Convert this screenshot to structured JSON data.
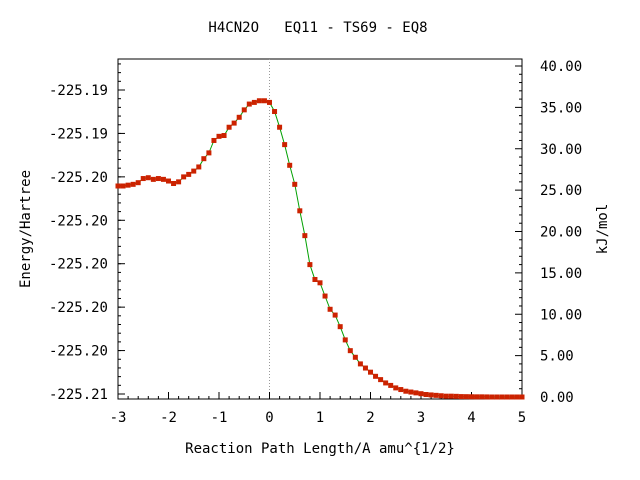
{
  "chart_data": {
    "type": "line",
    "title": "H4CN2O   EQ11 - TS69 - EQ8",
    "xlabel": "Reaction Path Length/A amu^{1/2}",
    "ylabel_left": "Energy/Hartree",
    "ylabel_right": "kJ/mol",
    "xlim": [
      -3,
      5
    ],
    "x_ticks": [
      "-3",
      "-2",
      "-1",
      "0",
      "1",
      "2",
      "3",
      "4",
      "5"
    ],
    "left_tick_labels": [
      "-225.19",
      "-225.19",
      "-225.20",
      "-225.20",
      "-225.20",
      "-225.20",
      "-225.20",
      "-225.21"
    ],
    "right_ylim": [
      0,
      40
    ],
    "right_tick_values": [
      0,
      5,
      10,
      15,
      20,
      25,
      30,
      35,
      40
    ],
    "right_tick_labels": [
      "0.00",
      "5.00",
      "10.00",
      "15.00",
      "20.00",
      "25.00",
      "30.00",
      "35.00",
      "40.00"
    ],
    "ts_x": 0,
    "line_color": "#00a000",
    "marker_color": "#cc2200",
    "series": [
      {
        "x": [
          -3.0,
          -2.9,
          -2.8,
          -2.7,
          -2.6,
          -2.5,
          -2.4,
          -2.3,
          -2.2,
          -2.1,
          -2.0,
          -1.9,
          -1.8,
          -1.7,
          -1.6,
          -1.5,
          -1.4,
          -1.3,
          -1.2,
          -1.1,
          -1.0,
          -0.9,
          -0.8,
          -0.7,
          -0.6,
          -0.5,
          -0.4,
          -0.3,
          -0.2,
          -0.1,
          0.0,
          0.1,
          0.2,
          0.3,
          0.4,
          0.5,
          0.6,
          0.7,
          0.8,
          0.9,
          1.0,
          1.1,
          1.2,
          1.3,
          1.4,
          1.5,
          1.6,
          1.7,
          1.8,
          1.9,
          2.0,
          2.1,
          2.2,
          2.3,
          2.4,
          2.5,
          2.6,
          2.7,
          2.8,
          2.9,
          3.0,
          3.1,
          3.2,
          3.3,
          3.4,
          3.5,
          3.6,
          3.7,
          3.8,
          3.9,
          4.0,
          4.1,
          4.2,
          4.3,
          4.4,
          4.5,
          4.6,
          4.7,
          4.8,
          4.9,
          5.0
        ],
        "y_kJmol": [
          25.5,
          25.5,
          25.6,
          25.7,
          25.9,
          26.4,
          26.5,
          26.3,
          26.4,
          26.3,
          26.1,
          25.8,
          26.0,
          26.6,
          26.9,
          27.3,
          27.8,
          28.8,
          29.5,
          31.0,
          31.5,
          31.6,
          32.6,
          33.1,
          33.8,
          34.7,
          35.4,
          35.6,
          35.8,
          35.8,
          35.6,
          34.5,
          32.6,
          30.5,
          28.0,
          25.7,
          22.5,
          19.5,
          16.0,
          14.2,
          13.8,
          12.2,
          10.6,
          9.9,
          8.5,
          6.9,
          5.6,
          4.8,
          4.0,
          3.5,
          3.0,
          2.5,
          2.1,
          1.7,
          1.4,
          1.1,
          0.9,
          0.7,
          0.6,
          0.5,
          0.4,
          0.3,
          0.25,
          0.2,
          0.15,
          0.1,
          0.1,
          0.08,
          0.05,
          0.04,
          0.03,
          0.02,
          0.02,
          0.01,
          0.0,
          0.0,
          0.0,
          0.0,
          0.0,
          0.0,
          0.0
        ]
      }
    ]
  }
}
